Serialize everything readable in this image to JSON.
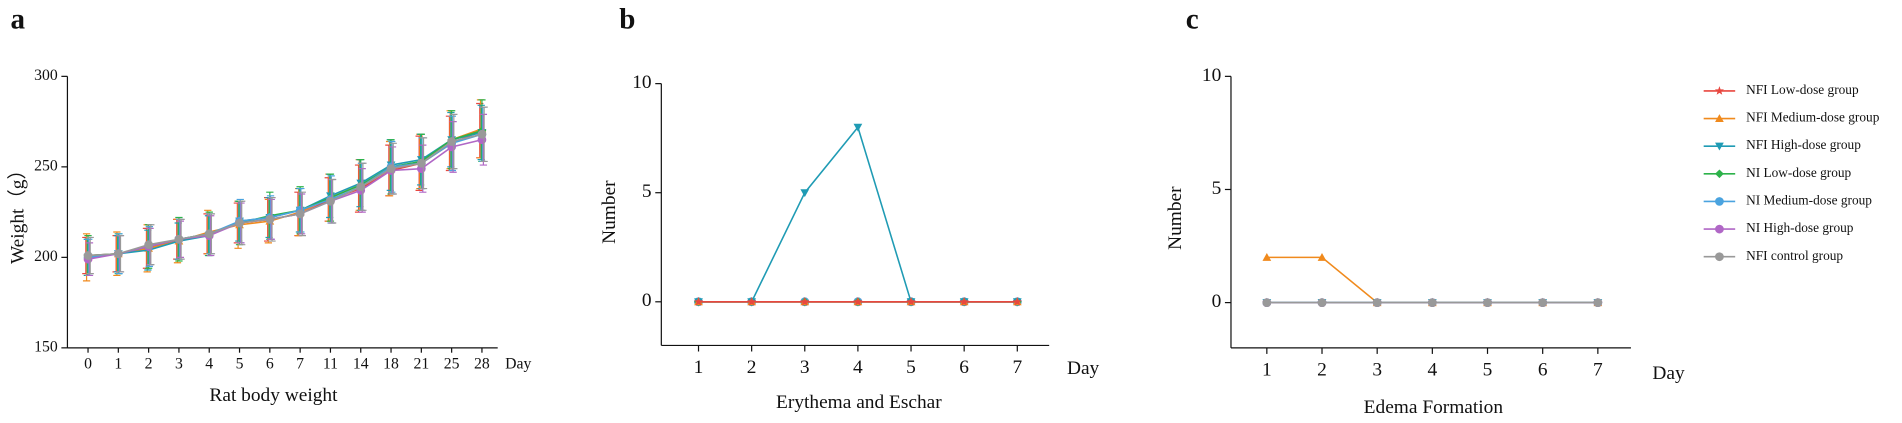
{
  "chart_data": [
    {
      "type": "line",
      "panel_label": "a",
      "xlabel": "Rat body weight",
      "ylabel": "Weight（g）",
      "x_axis_end_label": "Day",
      "categories": [
        "0",
        "1",
        "2",
        "3",
        "4",
        "5",
        "6",
        "7",
        "11",
        "14",
        "18",
        "21",
        "25",
        "28"
      ],
      "ylim": [
        150,
        300
      ],
      "yticks": [
        150,
        200,
        250,
        300
      ],
      "series": [
        {
          "name": "NFI Low-dose group",
          "color": "#e8473f",
          "marker": "star",
          "values": [
            201,
            202,
            205,
            210,
            213,
            219,
            221,
            224,
            232,
            238,
            248,
            252,
            263,
            270
          ],
          "errors": [
            10,
            10,
            11,
            11,
            11,
            11,
            12,
            12,
            12,
            13,
            14,
            15,
            15,
            15
          ]
        },
        {
          "name": "NFI Medium-dose group",
          "color": "#f08a1d",
          "marker": "triangle-up",
          "values": [
            200,
            202,
            205,
            209,
            214,
            218,
            220,
            225,
            233,
            240,
            249,
            253,
            265,
            271
          ],
          "errors": [
            13,
            12,
            13,
            12,
            12,
            13,
            12,
            13,
            13,
            14,
            15,
            15,
            16,
            16
          ]
        },
        {
          "name": "NFI High-dose group",
          "color": "#1f9bb4",
          "marker": "triangle-down",
          "values": [
            200,
            202,
            204,
            209,
            212,
            220,
            222,
            226,
            234,
            241,
            251,
            254,
            265,
            269
          ],
          "errors": [
            10,
            10,
            11,
            10,
            11,
            11,
            11,
            12,
            12,
            13,
            14,
            14,
            15,
            15
          ]
        },
        {
          "name": "NI Low-dose group",
          "color": "#2db24a",
          "marker": "diamond",
          "values": [
            201,
            202,
            206,
            210,
            213,
            219,
            223,
            226,
            233,
            240,
            250,
            253,
            265,
            270
          ],
          "errors": [
            11,
            11,
            12,
            12,
            12,
            12,
            13,
            13,
            13,
            14,
            15,
            15,
            16,
            17
          ]
        },
        {
          "name": "NI Medium-dose group",
          "color": "#4aa3df",
          "marker": "circle",
          "values": [
            200,
            202,
            206,
            210,
            213,
            220,
            222,
            226,
            232,
            239,
            250,
            252,
            263,
            268
          ],
          "errors": [
            10,
            11,
            11,
            11,
            11,
            12,
            12,
            12,
            13,
            13,
            14,
            14,
            15,
            15
          ]
        },
        {
          "name": "NI High-dose group",
          "color": "#b067c6",
          "marker": "circle",
          "values": [
            199,
            202,
            206,
            210,
            212,
            219,
            221,
            224,
            231,
            237,
            248,
            249,
            261,
            265
          ],
          "errors": [
            9,
            10,
            10,
            10,
            11,
            11,
            11,
            11,
            12,
            12,
            13,
            13,
            14,
            14
          ]
        },
        {
          "name": "NFI control group",
          "color": "#999999",
          "marker": "circle",
          "values": [
            201,
            202,
            207,
            210,
            213,
            219,
            221,
            224,
            231,
            239,
            249,
            252,
            264,
            268
          ],
          "errors": [
            10,
            10,
            11,
            11,
            11,
            12,
            12,
            12,
            12,
            13,
            14,
            14,
            15,
            15
          ]
        }
      ]
    },
    {
      "type": "line",
      "panel_label": "b",
      "xlabel": "Erythema and Eschar",
      "ylabel": "Number",
      "x_axis_end_label": "Day",
      "x": [
        1,
        2,
        3,
        4,
        5,
        6,
        7
      ],
      "xlim": [
        0.3,
        7.6
      ],
      "xticks": [
        1,
        2,
        3,
        4,
        5,
        6,
        7
      ],
      "ylim": [
        -2,
        10
      ],
      "yticks": [
        0,
        5,
        10
      ],
      "series": [
        {
          "name": "NFI control group",
          "color": "#999999",
          "marker": "circle",
          "values": [
            0,
            0,
            0,
            0,
            0,
            0,
            0
          ]
        },
        {
          "name": "NI High-dose group",
          "color": "#b067c6",
          "marker": "circle",
          "values": [
            0,
            0,
            0,
            0,
            0,
            0,
            0
          ]
        },
        {
          "name": "NI Medium-dose group",
          "color": "#4aa3df",
          "marker": "circle",
          "values": [
            0,
            0,
            0,
            0,
            0,
            0,
            0
          ]
        },
        {
          "name": "NI Low-dose group",
          "color": "#2db24a",
          "marker": "diamond",
          "values": [
            0,
            0,
            0,
            0,
            0,
            0,
            0
          ]
        },
        {
          "name": "NFI High-dose group",
          "color": "#1f9bb4",
          "marker": "triangle-down",
          "values": [
            0,
            0,
            5,
            8,
            0,
            0,
            0
          ]
        },
        {
          "name": "NFI Medium-dose group",
          "color": "#f08a1d",
          "marker": "triangle-up",
          "values": [
            0,
            0,
            0,
            0,
            0,
            0,
            0
          ]
        },
        {
          "name": "NFI Low-dose group",
          "color": "#e8473f",
          "marker": "star",
          "values": [
            0,
            0,
            0,
            0,
            0,
            0,
            0
          ]
        }
      ]
    },
    {
      "type": "line",
      "panel_label": "c",
      "xlabel": "Edema Formation",
      "ylabel": "Number",
      "x_axis_end_label": "Day",
      "x": [
        1,
        2,
        3,
        4,
        5,
        6,
        7
      ],
      "xlim": [
        0.35,
        7.6
      ],
      "xticks": [
        1,
        2,
        3,
        4,
        5,
        6,
        7
      ],
      "ylim": [
        -2,
        10
      ],
      "yticks": [
        0,
        5,
        10
      ],
      "legend": "right",
      "series": [
        {
          "name": "NFI Low-dose group",
          "color": "#e8473f",
          "marker": "star",
          "values": [
            0,
            0,
            0,
            0,
            0,
            0,
            0
          ]
        },
        {
          "name": "NFI Medium-dose group",
          "color": "#f08a1d",
          "marker": "triangle-up",
          "values": [
            2,
            2,
            0,
            0,
            0,
            0,
            0
          ]
        },
        {
          "name": "NFI High-dose group",
          "color": "#1f9bb4",
          "marker": "triangle-down",
          "values": [
            0,
            0,
            0,
            0,
            0,
            0,
            0
          ]
        },
        {
          "name": "NI Low-dose group",
          "color": "#2db24a",
          "marker": "diamond",
          "values": [
            0,
            0,
            0,
            0,
            0,
            0,
            0
          ]
        },
        {
          "name": "NI Medium-dose group",
          "color": "#4aa3df",
          "marker": "circle",
          "values": [
            0,
            0,
            0,
            0,
            0,
            0,
            0
          ]
        },
        {
          "name": "NI High-dose group",
          "color": "#b067c6",
          "marker": "circle",
          "values": [
            0,
            0,
            0,
            0,
            0,
            0,
            0
          ]
        },
        {
          "name": "NFI control group",
          "color": "#999999",
          "marker": "circle",
          "values": [
            0,
            0,
            0,
            0,
            0,
            0,
            0
          ]
        }
      ]
    }
  ]
}
